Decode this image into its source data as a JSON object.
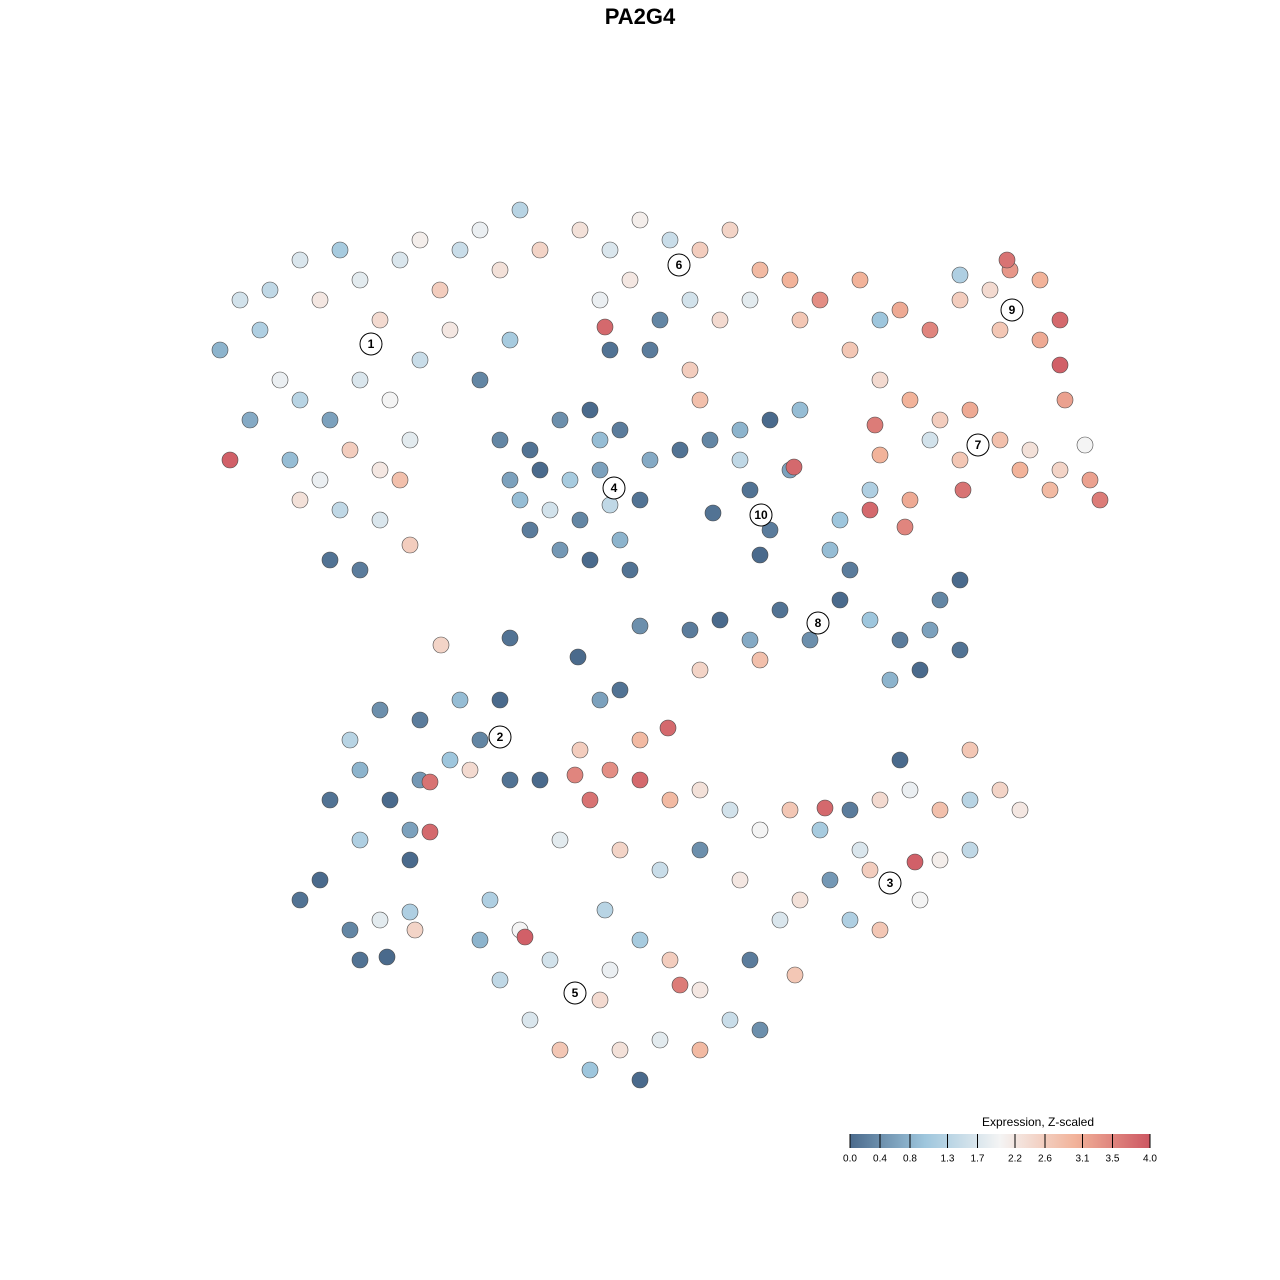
{
  "chart_data": {
    "type": "scatter",
    "title": "PA2G4",
    "xlim": [
      -47,
      47
    ],
    "ylim": [
      -46,
      46
    ],
    "x": [
      -45,
      -43,
      -41,
      -39,
      -37,
      -35,
      -33,
      -31,
      -29,
      -27,
      -25,
      -23,
      -21,
      -19,
      -17,
      -15,
      -13,
      -37,
      -34,
      -31,
      -28,
      -25,
      -22,
      -19,
      -16,
      -38,
      -35,
      -32,
      -29,
      -26,
      -37,
      -33,
      -29,
      -26,
      -34,
      -31,
      -44,
      -42,
      -27,
      -40,
      -9,
      -6,
      -3,
      0,
      3,
      6,
      9,
      12,
      15,
      -7,
      -4,
      -1,
      2,
      5,
      8,
      13,
      2,
      3,
      -6.5,
      -2,
      -6,
      19,
      23,
      26,
      29,
      32,
      34,
      37,
      39,
      37,
      33,
      29,
      21,
      39.5,
      39,
      33.7,
      18,
      21,
      24,
      27,
      30,
      33,
      36,
      39,
      42,
      43,
      38,
      35,
      29,
      26,
      20.5,
      21,
      29.3,
      41.5,
      24,
      20,
      17,
      23.5,
      20,
      -16,
      -14,
      -11,
      -8,
      -5,
      -2,
      -3,
      -5,
      -8,
      -11,
      -14,
      -15,
      -10,
      -7,
      -6,
      -9,
      -12,
      -13,
      -7,
      -4,
      -17,
      1,
      4,
      7,
      10,
      13,
      8,
      10,
      9,
      12,
      12.4,
      4.3,
      7,
      2,
      5,
      8,
      11,
      14,
      17,
      20,
      23,
      26,
      29,
      25,
      22,
      27,
      29,
      18,
      16,
      3,
      9,
      -3,
      -9.2,
      -16,
      -22.9,
      -34,
      -31,
      -28,
      -25,
      -22,
      -19,
      -17,
      -21,
      -25,
      -29,
      -32,
      -26,
      -24,
      -24,
      -20,
      -16,
      -31,
      -13,
      -26,
      -9,
      -6,
      -3,
      0,
      3,
      6,
      9,
      12,
      15,
      18,
      21,
      24,
      27,
      30,
      33,
      35,
      19,
      20,
      24.5,
      27,
      30,
      16,
      13,
      11,
      18,
      21,
      25,
      -8,
      -9.5,
      -0.2,
      -7,
      -5,
      -3,
      -11,
      -5,
      -1,
      3,
      7,
      12.5,
      15.5,
      30,
      23,
      -18,
      -15,
      -12,
      -7,
      -6,
      -3,
      0,
      3,
      6,
      9,
      3,
      -1,
      -5,
      -8,
      -11,
      -14,
      -17,
      -19,
      -14.5,
      1,
      -6.5,
      -3,
      8,
      -37,
      -35,
      -32,
      -31,
      -29,
      -26,
      -25.5,
      -28.3
    ],
    "y": [
      29,
      34,
      31,
      26,
      38,
      34,
      39,
      36,
      32,
      38,
      40,
      35,
      39,
      41,
      37,
      43,
      39,
      24,
      22,
      26,
      24,
      28,
      31,
      26,
      30,
      18,
      16,
      19,
      17,
      20,
      14,
      13,
      12,
      9.5,
      8,
      7,
      18,
      22,
      16,
      35,
      41,
      39,
      42,
      40,
      39,
      41,
      37,
      36,
      34,
      34,
      36,
      32,
      34,
      32,
      34,
      32,
      27,
      24,
      31.3,
      29,
      29,
      36,
      33,
      31,
      34,
      35,
      37,
      36,
      32,
      30,
      31,
      36.5,
      32,
      24,
      27.5,
      38,
      29,
      26,
      24,
      22,
      23,
      20,
      19,
      17,
      16,
      14,
      15,
      17,
      18,
      20,
      21.5,
      18.5,
      15,
      19.5,
      14,
      15,
      12,
      11.3,
      13,
      16,
      19,
      22,
      23,
      21,
      18,
      14,
      10,
      8,
      9,
      11,
      14,
      16,
      17,
      13.5,
      12,
      13,
      17,
      20,
      7,
      20,
      19,
      20,
      21,
      22,
      23,
      15,
      11,
      8.5,
      17,
      17.3,
      12.7,
      18,
      1,
      2,
      0,
      3,
      0,
      4,
      2,
      0,
      1,
      -1,
      -3,
      -4,
      4,
      6,
      7,
      9,
      -3,
      -2,
      1.4,
      -1.7,
      0.2,
      -0.5,
      -16,
      -13,
      -16,
      -14,
      -12,
      -10,
      -6,
      -6,
      -8,
      -7,
      -10,
      -19,
      -19.2,
      -14.2,
      -13,
      -14,
      -20,
      -14,
      -22,
      -11,
      -13,
      -14,
      -16,
      -15,
      -17,
      -19,
      -17,
      -19,
      -17,
      -16,
      -15,
      -17,
      -16,
      -15,
      -17,
      -21,
      -23,
      -22.2,
      -22,
      -21,
      -24,
      -26,
      -28,
      -28,
      -29,
      -26,
      -16,
      -13.5,
      -8.8,
      -6,
      -5,
      -10,
      -20,
      -21,
      -23,
      -21,
      -24,
      -33.5,
      -16.8,
      -11,
      -12,
      -26,
      -29,
      -32,
      -36,
      -33,
      -30,
      -32,
      -35,
      -38,
      -39,
      -41,
      -40,
      -41,
      -43,
      -41,
      -38,
      -34,
      -30,
      -29.7,
      -34.5,
      -27,
      -44,
      -32,
      -26,
      -24,
      -29,
      -32,
      -28,
      -27.2,
      -29,
      -31.7
    ],
    "values": [
      0.8,
      1.6,
      1.2,
      1.9,
      1.7,
      2.2,
      1.1,
      1.8,
      2.4,
      1.7,
      2.1,
      2.6,
      1.5,
      1.9,
      2.3,
      1.3,
      2.5,
      1.3,
      0.6,
      1.7,
      2.0,
      1.5,
      2.2,
      0.3,
      1.1,
      0.9,
      1.9,
      2.6,
      2.2,
      1.8,
      2.3,
      1.4,
      1.7,
      2.6,
      0.1,
      0.2,
      3.9,
      0.7,
      2.8,
      1.4,
      2.3,
      1.7,
      2.1,
      1.5,
      2.6,
      2.5,
      2.9,
      3.0,
      3.4,
      1.9,
      2.2,
      0.3,
      1.6,
      2.4,
      1.8,
      2.7,
      2.6,
      2.8,
      3.8,
      0.2,
      0.1,
      3.0,
      3.1,
      3.5,
      2.6,
      2.4,
      3.3,
      3.0,
      3.8,
      3.1,
      2.7,
      1.2,
      1.0,
      3.2,
      3.9,
      3.7,
      2.7,
      2.4,
      3.0,
      2.6,
      3.1,
      2.8,
      2.3,
      2.5,
      3.2,
      3.6,
      2.9,
      3.0,
      2.7,
      1.6,
      3.6,
      3.0,
      3.7,
      2.0,
      3.1,
      1.2,
      1.0,
      3.5,
      3.8,
      0.6,
      0.1,
      0.4,
      0.0,
      0.2,
      0.7,
      0.1,
      0.8,
      0.0,
      0.5,
      0.2,
      0.9,
      1.1,
      0.6,
      1.4,
      0.3,
      1.6,
      0.0,
      0.9,
      0.1,
      0.3,
      0.1,
      0.3,
      0.8,
      0.0,
      0.9,
      0.1,
      0.2,
      0.0,
      0.6,
      3.8,
      0.1,
      1.4,
      0.2,
      0.0,
      0.7,
      0.1,
      0.4,
      0.0,
      1.0,
      0.2,
      0.6,
      0.1,
      0.0,
      0.8,
      0.3,
      0.0,
      0.2,
      0.9,
      2.5,
      2.8,
      0.4,
      0.0,
      0.1,
      2.5,
      0.1,
      0.8,
      0.0,
      0.5,
      1.0,
      0.3,
      0.0,
      0.9,
      0.2,
      0.4,
      1.3,
      0.6,
      3.8,
      3.7,
      2.4,
      0.1,
      1.2,
      0.0,
      0.0,
      2.6,
      3.4,
      3.8,
      2.9,
      2.3,
      1.6,
      2.0,
      2.7,
      1.1,
      0.2,
      2.4,
      1.9,
      2.8,
      1.3,
      2.5,
      2.2,
      1.7,
      2.6,
      3.9,
      2.1,
      1.4,
      0.5,
      2.3,
      1.7,
      1.2,
      2.7,
      2.0,
      3.7,
      3.5,
      3.8,
      0.6,
      0.1,
      2.9,
      1.8,
      2.5,
      1.5,
      0.4,
      2.2,
      2.7,
      3.8,
      2.7,
      0.0,
      1.2,
      2.0,
      1.6,
      2.4,
      1.9,
      1.1,
      2.6,
      2.2,
      1.5,
      0.4,
      2.9,
      1.8,
      2.3,
      1.0,
      2.7,
      1.7,
      1.4,
      0.8,
      3.9,
      3.6,
      1.3,
      0.0,
      0.2,
      0.1,
      0.0,
      0.3,
      0.1,
      1.8,
      1.2,
      2.5,
      0.0
    ],
    "annotations": [
      {
        "label": "1",
        "x": -29.9,
        "y": 29.6
      },
      {
        "label": "2",
        "x": -17,
        "y": -9.7
      },
      {
        "label": "3",
        "x": 22,
        "y": -24.3
      },
      {
        "label": "4",
        "x": -5.6,
        "y": 15.2
      },
      {
        "label": "5",
        "x": -9.5,
        "y": -35.3
      },
      {
        "label": "6",
        "x": 0.9,
        "y": 37.5
      },
      {
        "label": "7",
        "x": 30.8,
        "y": 19.5
      },
      {
        "label": "8",
        "x": 14.8,
        "y": 1.7
      },
      {
        "label": "9",
        "x": 34.2,
        "y": 33
      },
      {
        "label": "10",
        "x": 9.1,
        "y": 12.5
      }
    ],
    "colorbar": {
      "title": "Expression, Z-scaled",
      "lim": [
        0,
        4
      ],
      "colors": [
        "#4a6a8c",
        "#9ec6dd",
        "#f4f4f4",
        "#f2b39a",
        "#cd5762"
      ],
      "ticks": [
        {
          "value": 0,
          "label": "0.0"
        },
        0.4,
        0.8,
        1.3,
        1.7,
        2.2,
        2.6,
        3.1,
        3.5,
        {
          "value": 4,
          "label": "4.0"
        }
      ]
    }
  }
}
